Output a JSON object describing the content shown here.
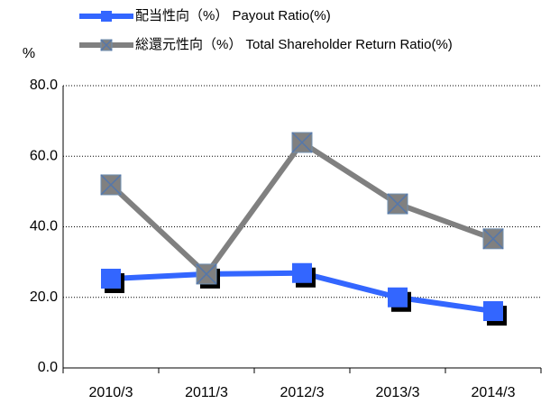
{
  "chart_data": {
    "type": "line",
    "y_label": "%",
    "categories": [
      "2010/3",
      "2011/3",
      "2012/3",
      "2013/3",
      "2014/3"
    ],
    "series": [
      {
        "name": "配当性向（%） Payout Ratio(%)",
        "color": "#3366ff",
        "values": [
          25.3,
          26.6,
          26.9,
          20.0,
          16.1
        ]
      },
      {
        "name": "総還元性向（%） Total Shareholder Return Ratio(%)",
        "color": "#808080",
        "values": [
          51.9,
          26.6,
          63.9,
          46.5,
          36.6
        ]
      }
    ],
    "ylim": [
      0,
      80
    ],
    "yticks": [
      {
        "value": 0,
        "label": "0.0"
      },
      {
        "value": 20,
        "label": "20.0"
      },
      {
        "value": 40,
        "label": "40.0"
      },
      {
        "value": 60,
        "label": "60.0"
      },
      {
        "value": 80,
        "label": "80.0"
      }
    ],
    "grid": true
  }
}
